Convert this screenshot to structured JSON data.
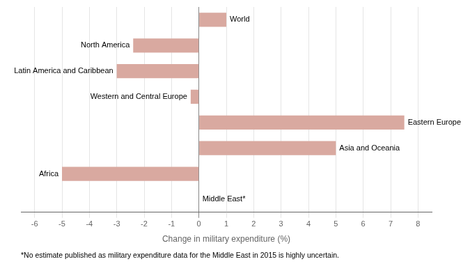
{
  "chart_data": {
    "type": "bar",
    "orientation": "horizontal",
    "categories": [
      "World",
      "North America",
      "Latin America and Caribbean",
      "Western and Central Europe",
      "Eastern Europe",
      "Asia and Oceania",
      "Africa",
      "Middle East*"
    ],
    "values": [
      1.0,
      -2.4,
      -3.0,
      -0.3,
      7.5,
      5.0,
      -5.0,
      0
    ],
    "color": "#d9a9a0",
    "xlabel": "Change in military expenditure (%)",
    "xlim": [
      -6.5,
      8.5
    ],
    "xticks": [
      -6,
      -5,
      -4,
      -3,
      -2,
      -1,
      0,
      1,
      2,
      3,
      4,
      5,
      6,
      7,
      8
    ],
    "grid": true,
    "tick_labels": "x",
    "footnote": "*No estimate published as military expenditure data for the Middle East in 2015 is highly uncertain."
  }
}
